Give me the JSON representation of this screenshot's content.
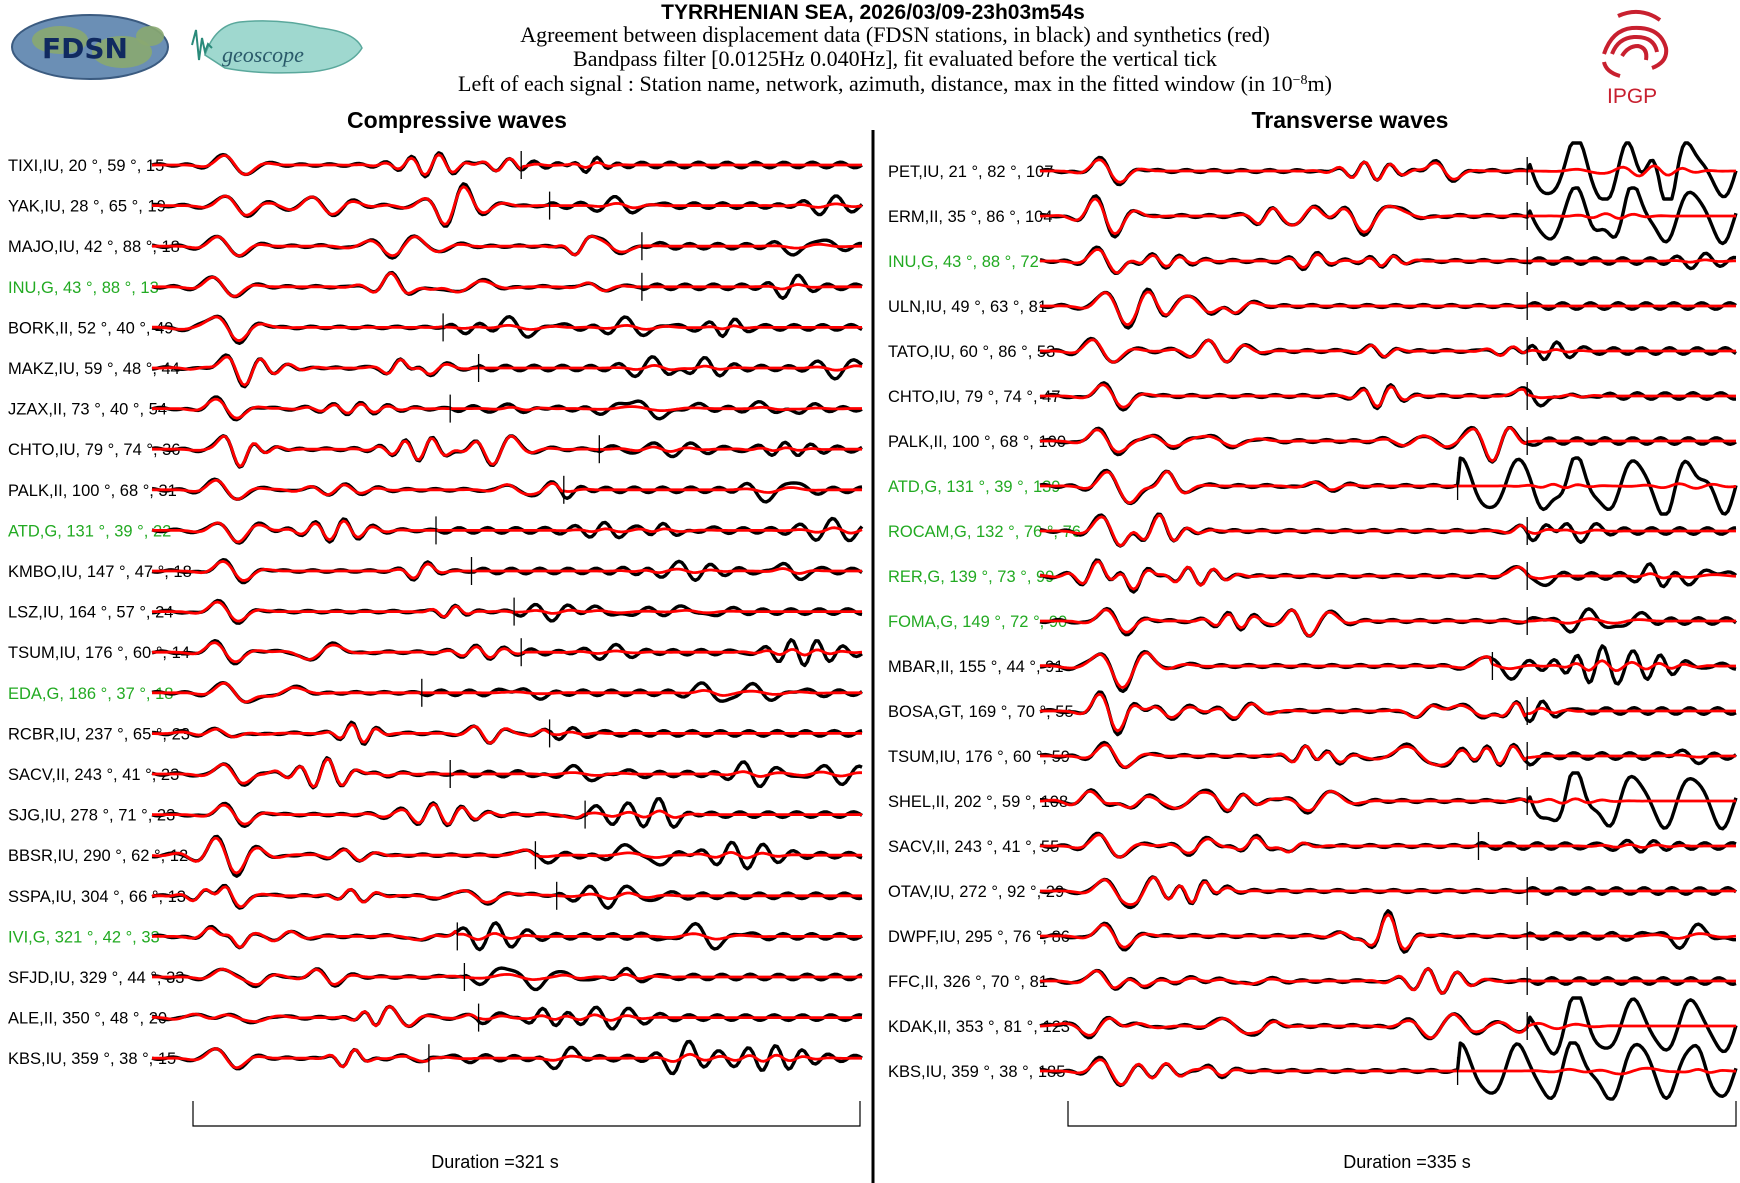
{
  "header": {
    "title": "TYRRHENIAN SEA, 2026/03/09-23h03m54s",
    "line1": "Agreement between displacement data (FDSN stations, in black) and synthetics (red)",
    "line2": "Bandpass filter [0.0125Hz 0.040Hz], fit evaluated before the vertical tick",
    "line3_prefix": "Left of each signal : Station name, network, azimuth, distance, max in the fitted window (in 10",
    "line3_exp": "−8",
    "line3_suffix": "m)"
  },
  "logos": {
    "fdsn_text": "FDSN",
    "geoscope_text": "geoscope",
    "ipgp_text": "IPGP"
  },
  "colors": {
    "data": "#000000",
    "synthetic": "#ff0000",
    "geoscope_label": "#22aa22",
    "ipgp": "#c8202f"
  },
  "chart_data": [
    {
      "type": "line",
      "title": "Compressive waves",
      "xlabel": "Duration =321 s",
      "duration_s": 321,
      "series_legend": [
        "data (black)",
        "synthetics (red)"
      ],
      "stations": [
        {
          "label": "TIXI,IU, 20 °, 59 °, 15",
          "network": "IU",
          "azimuth": 20,
          "distance": 59,
          "max": 15,
          "tick": 0.52,
          "highlight": false
        },
        {
          "label": "YAK,IU, 28 °, 65 °, 19",
          "network": "IU",
          "azimuth": 28,
          "distance": 65,
          "max": 19,
          "tick": 0.56,
          "highlight": false
        },
        {
          "label": "MAJO,IU, 42 °, 88 °, 18",
          "network": "IU",
          "azimuth": 42,
          "distance": 88,
          "max": 18,
          "tick": 0.69,
          "highlight": false
        },
        {
          "label": "INU,G, 43 °, 88 °, 13",
          "network": "G",
          "azimuth": 43,
          "distance": 88,
          "max": 13,
          "tick": 0.69,
          "highlight": true
        },
        {
          "label": "BORK,II, 52 °, 40 °, 49",
          "network": "II",
          "azimuth": 52,
          "distance": 40,
          "max": 49,
          "tick": 0.41,
          "highlight": false
        },
        {
          "label": "MAKZ,IU, 59 °, 48 °, 44",
          "network": "IU",
          "azimuth": 59,
          "distance": 48,
          "max": 44,
          "tick": 0.46,
          "highlight": false
        },
        {
          "label": "JZAX,II, 73 °, 40 °, 54",
          "network": "II",
          "azimuth": 73,
          "distance": 40,
          "max": 54,
          "tick": 0.42,
          "highlight": false
        },
        {
          "label": "CHTO,IU, 79 °, 74 °, 36",
          "network": "IU",
          "azimuth": 79,
          "distance": 74,
          "max": 36,
          "tick": 0.63,
          "highlight": false
        },
        {
          "label": "PALK,II, 100 °, 68 °, 31",
          "network": "II",
          "azimuth": 100,
          "distance": 68,
          "max": 31,
          "tick": 0.58,
          "highlight": false
        },
        {
          "label": "ATD,G, 131 °, 39 °, 22",
          "network": "G",
          "azimuth": 131,
          "distance": 39,
          "max": 22,
          "tick": 0.4,
          "highlight": true
        },
        {
          "label": "KMBO,IU, 147 °, 47 °, 18",
          "network": "IU",
          "azimuth": 147,
          "distance": 47,
          "max": 18,
          "tick": 0.45,
          "highlight": false
        },
        {
          "label": "LSZ,IU, 164 °, 57 °, 24",
          "network": "IU",
          "azimuth": 164,
          "distance": 57,
          "max": 24,
          "tick": 0.51,
          "highlight": false
        },
        {
          "label": "TSUM,IU, 176 °, 60 °, 14",
          "network": "IU",
          "azimuth": 176,
          "distance": 60,
          "max": 14,
          "tick": 0.52,
          "highlight": false
        },
        {
          "label": "EDA,G, 186 °, 37 °, 18",
          "network": "G",
          "azimuth": 186,
          "distance": 37,
          "max": 18,
          "tick": 0.38,
          "highlight": true
        },
        {
          "label": "RCBR,IU, 237 °, 65 °, 23",
          "network": "IU",
          "azimuth": 237,
          "distance": 65,
          "max": 23,
          "tick": 0.56,
          "highlight": false
        },
        {
          "label": "SACV,II, 243 °, 41 °, 23",
          "network": "II",
          "azimuth": 243,
          "distance": 41,
          "max": 23,
          "tick": 0.42,
          "highlight": false
        },
        {
          "label": "SJG,IU, 278 °, 71 °, 23",
          "network": "IU",
          "azimuth": 278,
          "distance": 71,
          "max": 23,
          "tick": 0.61,
          "highlight": false
        },
        {
          "label": "BBSR,IU, 290 °, 62 °, 12",
          "network": "IU",
          "azimuth": 290,
          "distance": 62,
          "max": 12,
          "tick": 0.54,
          "highlight": false
        },
        {
          "label": "SSPA,IU, 304 °, 66 °, 13",
          "network": "IU",
          "azimuth": 304,
          "distance": 66,
          "max": 13,
          "tick": 0.57,
          "highlight": false
        },
        {
          "label": "IVI,G, 321 °, 42 °, 33",
          "network": "G",
          "azimuth": 321,
          "distance": 42,
          "max": 33,
          "tick": 0.43,
          "highlight": true
        },
        {
          "label": "SFJD,IU, 329 °, 44 °, 33",
          "network": "IU",
          "azimuth": 329,
          "distance": 44,
          "max": 33,
          "tick": 0.44,
          "highlight": false
        },
        {
          "label": "ALE,II, 350 °, 48 °, 20",
          "network": "II",
          "azimuth": 350,
          "distance": 48,
          "max": 20,
          "tick": 0.46,
          "highlight": false
        },
        {
          "label": "KBS,IU, 359 °, 38 °, 15",
          "network": "IU",
          "azimuth": 359,
          "distance": 38,
          "max": 15,
          "tick": 0.39,
          "highlight": false
        }
      ]
    },
    {
      "type": "line",
      "title": "Transverse waves",
      "xlabel": "Duration =335 s",
      "duration_s": 335,
      "series_legend": [
        "data (black)",
        "synthetics (red)"
      ],
      "stations": [
        {
          "label": "PET,IU, 21 °, 82 °, 107",
          "network": "IU",
          "azimuth": 21,
          "distance": 82,
          "max": 107,
          "tick": 0.7,
          "highlight": false
        },
        {
          "label": "ERM,II, 35 °, 86 °, 104",
          "network": "II",
          "azimuth": 35,
          "distance": 86,
          "max": 104,
          "tick": 0.7,
          "highlight": false
        },
        {
          "label": "INU,G, 43 °, 88 °, 72",
          "network": "G",
          "azimuth": 43,
          "distance": 88,
          "max": 72,
          "tick": 0.7,
          "highlight": true
        },
        {
          "label": "ULN,IU, 49 °, 63 °, 81",
          "network": "IU",
          "azimuth": 49,
          "distance": 63,
          "max": 81,
          "tick": 0.7,
          "highlight": false
        },
        {
          "label": "TATO,IU, 60 °, 86 °, 53",
          "network": "IU",
          "azimuth": 60,
          "distance": 86,
          "max": 53,
          "tick": 0.7,
          "highlight": false
        },
        {
          "label": "CHTO,IU, 79 °, 74 °, 47",
          "network": "IU",
          "azimuth": 79,
          "distance": 74,
          "max": 47,
          "tick": 0.7,
          "highlight": false
        },
        {
          "label": "PALK,II, 100 °, 68 °, 100",
          "network": "II",
          "azimuth": 100,
          "distance": 68,
          "max": 100,
          "tick": 0.7,
          "highlight": false
        },
        {
          "label": "ATD,G, 131 °, 39 °, 139",
          "network": "G",
          "azimuth": 131,
          "distance": 39,
          "max": 139,
          "tick": 0.6,
          "highlight": true
        },
        {
          "label": "ROCAM,G, 132 °, 76 °, 76",
          "network": "G",
          "azimuth": 132,
          "distance": 76,
          "max": 76,
          "tick": 0.7,
          "highlight": true
        },
        {
          "label": "RER,G, 139 °, 73 °, 99",
          "network": "G",
          "azimuth": 139,
          "distance": 73,
          "max": 99,
          "tick": 0.7,
          "highlight": true
        },
        {
          "label": "FOMA,G, 149 °, 72 °, 90",
          "network": "G",
          "azimuth": 149,
          "distance": 72,
          "max": 90,
          "tick": 0.7,
          "highlight": true
        },
        {
          "label": "MBAR,II, 155 °, 44 °, 91",
          "network": "II",
          "azimuth": 155,
          "distance": 44,
          "max": 91,
          "tick": 0.65,
          "highlight": false
        },
        {
          "label": "BOSA,GT, 169 °, 70 °, 55",
          "network": "GT",
          "azimuth": 169,
          "distance": 70,
          "max": 55,
          "tick": 0.7,
          "highlight": false
        },
        {
          "label": "TSUM,IU, 176 °, 60 °, 59",
          "network": "IU",
          "azimuth": 176,
          "distance": 60,
          "max": 59,
          "tick": 0.7,
          "highlight": false
        },
        {
          "label": "SHEL,II, 202 °, 59 °, 108",
          "network": "II",
          "azimuth": 202,
          "distance": 59,
          "max": 108,
          "tick": 0.7,
          "highlight": false
        },
        {
          "label": "SACV,II, 243 °, 41 °, 55",
          "network": "II",
          "azimuth": 243,
          "distance": 41,
          "max": 55,
          "tick": 0.63,
          "highlight": false
        },
        {
          "label": "OTAV,IU, 272 °, 92 °, 29",
          "network": "IU",
          "azimuth": 272,
          "distance": 92,
          "max": 29,
          "tick": 0.7,
          "highlight": false
        },
        {
          "label": "DWPF,IU, 295 °, 76 °, 86",
          "network": "IU",
          "azimuth": 295,
          "distance": 76,
          "max": 86,
          "tick": 0.7,
          "highlight": false
        },
        {
          "label": "FFC,II, 326 °, 70 °, 81",
          "network": "II",
          "azimuth": 326,
          "distance": 70,
          "max": 81,
          "tick": 0.7,
          "highlight": false
        },
        {
          "label": "KDAK,II, 353 °, 81 °, 123",
          "network": "II",
          "azimuth": 353,
          "distance": 81,
          "max": 123,
          "tick": 0.7,
          "highlight": false
        },
        {
          "label": "KBS,IU, 359 °, 38 °, 185",
          "network": "IU",
          "azimuth": 359,
          "distance": 38,
          "max": 185,
          "tick": 0.6,
          "highlight": false
        }
      ]
    }
  ]
}
